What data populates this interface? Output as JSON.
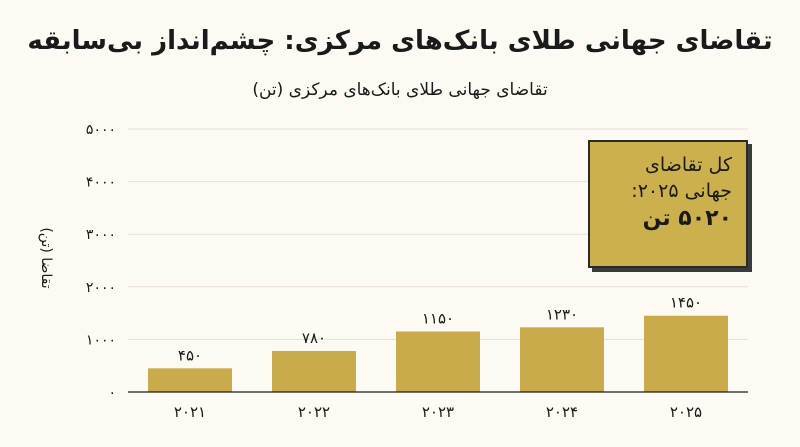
{
  "chart_data": {
    "type": "bar",
    "title": "تقاضای جهانی طلای بانک‌های مرکزی: چشم‌انداز بی‌سابقه",
    "subtitle": "تقاضای جهانی طلای بانک‌های مرکزی (تن)",
    "ylabel": "تقاضا (تن)",
    "xlabel": "",
    "categories": [
      "۲۰۲۱",
      "۲۰۲۲",
      "۲۰۲۳",
      "۲۰۲۴",
      "۲۰۲۵"
    ],
    "values": [
      450,
      780,
      1150,
      1230,
      1450
    ],
    "value_labels": [
      "۴۵۰",
      "۷۸۰",
      "۱۱۵۰",
      "۱۲۳۰",
      "۱۴۵۰"
    ],
    "ylim": [
      0,
      5000
    ],
    "yticks": [
      0,
      1000,
      2000,
      3000,
      4000,
      5000
    ],
    "ytick_labels": [
      "۰",
      "۱۰۰۰",
      "۲۰۰۰",
      "۳۰۰۰",
      "۴۰۰۰",
      "۵۰۰۰"
    ],
    "grid": true,
    "bar_color": "#c9ab4b",
    "annotation": {
      "line1": "کل تقاضای",
      "line2": "جهانی ۲۰۲۵:",
      "value": "۵۰۲۰ تن",
      "fill": "#cdb04e"
    }
  }
}
